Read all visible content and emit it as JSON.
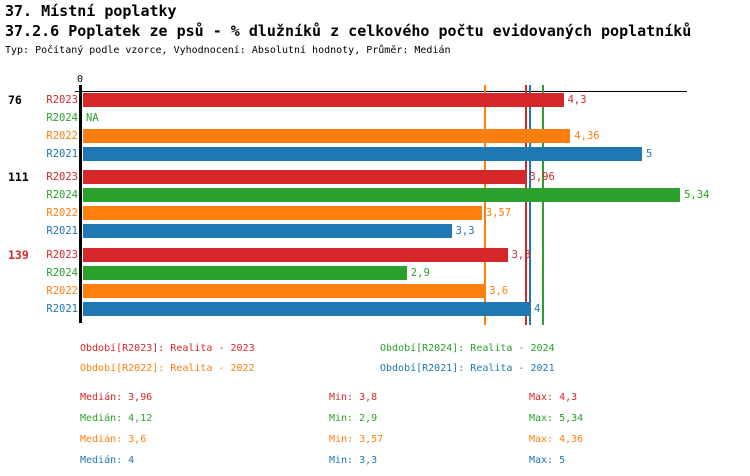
{
  "header": {
    "title": "37. Místní poplatky",
    "subtitle": "37.2.6 Poplatek ze psů - % dlužníků z celkového počtu evidovaných poplatníků",
    "meta": "Typ: Počítaný podle vzorce, Vyhodnocení: Absolutní hodnoty, Průměr: Medián"
  },
  "colors": {
    "R2023": "#d62728",
    "R2024": "#2ca02c",
    "R2022": "#ff7f0e",
    "R2021": "#1f77b4",
    "axis": "#000000",
    "highlight_group_label": "#d62728"
  },
  "chart_data": {
    "type": "bar",
    "orientation": "horizontal",
    "x_axis": {
      "zero_label": "0",
      "min": 0,
      "max": 5.4,
      "grid": false
    },
    "series": [
      "R2023",
      "R2024",
      "R2022",
      "R2021"
    ],
    "groups": [
      {
        "label": "76",
        "label_color": "#000000",
        "bars": [
          {
            "series": "R2023",
            "value": 4.3,
            "display": "4,3"
          },
          {
            "series": "R2024",
            "value": null,
            "display": "NA"
          },
          {
            "series": "R2022",
            "value": 4.36,
            "display": "4,36"
          },
          {
            "series": "R2021",
            "value": 5,
            "display": "5"
          }
        ]
      },
      {
        "label": "111",
        "label_color": "#000000",
        "bars": [
          {
            "series": "R2023",
            "value": 3.96,
            "display": "3,96"
          },
          {
            "series": "R2024",
            "value": 5.34,
            "display": "5,34"
          },
          {
            "series": "R2022",
            "value": 3.57,
            "display": "3,57"
          },
          {
            "series": "R2021",
            "value": 3.3,
            "display": "3,3"
          }
        ]
      },
      {
        "label": "139",
        "label_color": "#d62728",
        "bars": [
          {
            "series": "R2023",
            "value": 3.8,
            "display": "3,8"
          },
          {
            "series": "R2024",
            "value": 2.9,
            "display": "2,9"
          },
          {
            "series": "R2022",
            "value": 3.6,
            "display": "3,6"
          },
          {
            "series": "R2021",
            "value": 4,
            "display": "4"
          }
        ]
      }
    ],
    "median_lines": [
      {
        "series": "R2022",
        "value": 3.6
      },
      {
        "series": "R2023",
        "value": 3.96
      },
      {
        "series": "R2021",
        "value": 4
      },
      {
        "series": "R2024",
        "value": 4.12
      }
    ]
  },
  "legend": {
    "items": [
      {
        "series": "R2023",
        "label": "Období[R2023]: Realita - 2023"
      },
      {
        "series": "R2024",
        "label": "Období[R2024]: Realita - 2024"
      },
      {
        "series": "R2022",
        "label": "Období[R2022]: Realita - 2022"
      },
      {
        "series": "R2021",
        "label": "Období[R2021]: Realita - 2021"
      }
    ]
  },
  "stats": {
    "rows": [
      {
        "series": "R2023",
        "median": "Medián: 3,96",
        "min": "Min: 3,8",
        "max": "Max: 4,3"
      },
      {
        "series": "R2024",
        "median": "Medián: 4,12",
        "min": "Min: 2,9",
        "max": "Max: 5,34"
      },
      {
        "series": "R2022",
        "median": "Medián: 3,6",
        "min": "Min: 3,57",
        "max": "Max: 4,36"
      },
      {
        "series": "R2021",
        "median": "Medián: 4",
        "min": "Min: 3,3",
        "max": "Max: 5"
      }
    ]
  }
}
